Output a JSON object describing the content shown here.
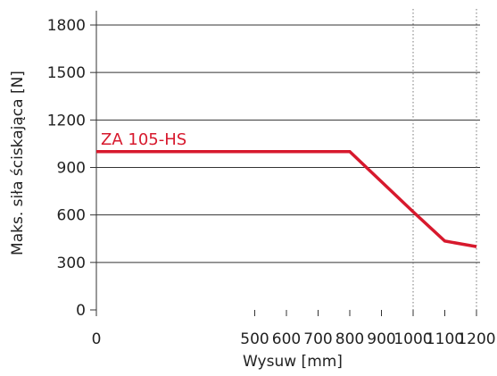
{
  "chart_data": {
    "type": "line",
    "xlabel": "Wysuw [mm]",
    "ylabel": "Maks. siła ściskająca [N]",
    "xlim": [
      0,
      1200
    ],
    "ylim": [
      0,
      1800
    ],
    "x_ticks": [
      0,
      500,
      600,
      700,
      800,
      900,
      1000,
      1100,
      1200
    ],
    "x_tick_labels": [
      "0",
      "500",
      "600",
      "700",
      "800",
      "900",
      "1000",
      "1100",
      "1200"
    ],
    "y_ticks": [
      0,
      300,
      600,
      900,
      1200,
      1500,
      1800
    ],
    "y_tick_labels": [
      "0",
      "300",
      "600",
      "900",
      "1200",
      "1500",
      "1800"
    ],
    "horizontal_grid": true,
    "dotted_vertical_lines_at": [
      1000,
      1200
    ],
    "series": [
      {
        "name": "ZA 105-HS",
        "color": "#d7192d",
        "points": [
          {
            "x": 0,
            "y": 1000
          },
          {
            "x": 800,
            "y": 1000
          },
          {
            "x": 1000,
            "y": 620
          },
          {
            "x": 1100,
            "y": 435
          },
          {
            "x": 1200,
            "y": 400
          }
        ]
      }
    ]
  }
}
